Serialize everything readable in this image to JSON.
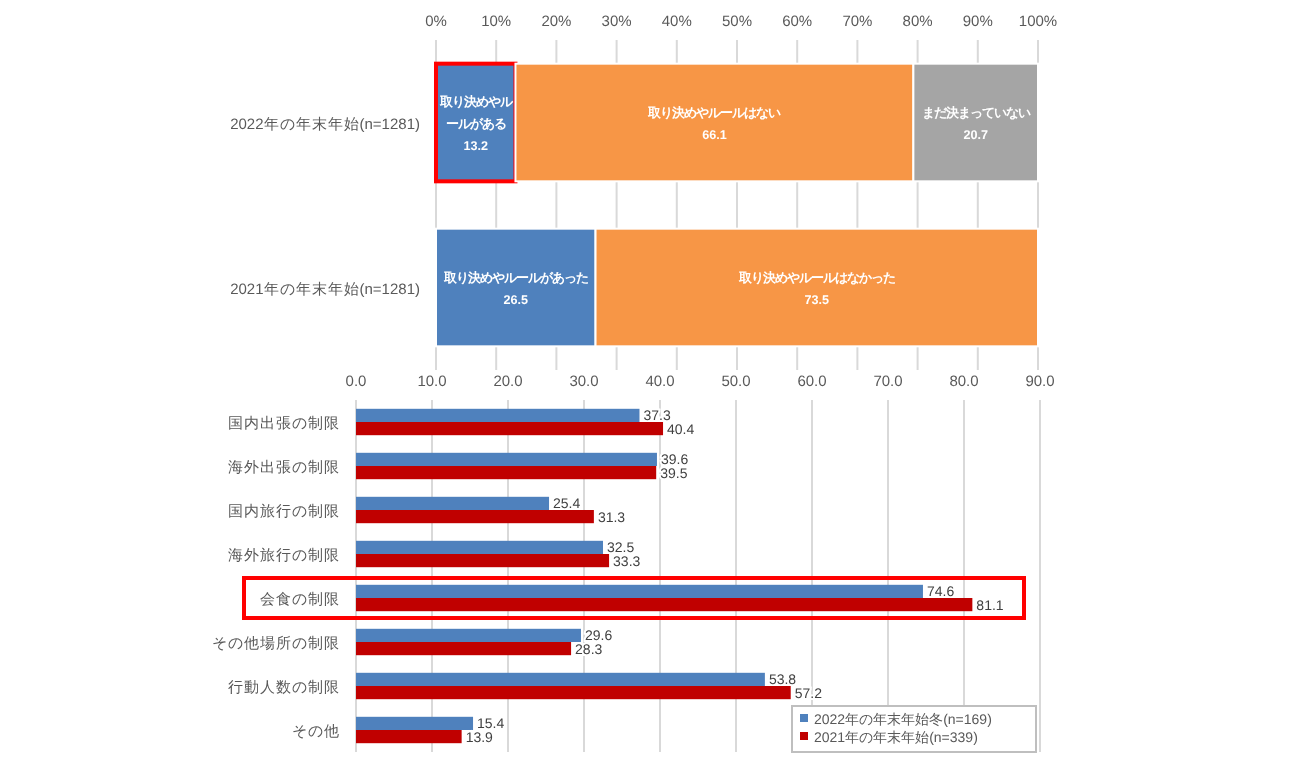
{
  "chart_data": [
    {
      "type": "bar",
      "orientation": "horizontal",
      "stacked": true,
      "categories": [
        "2022年の年末年始(n=1281)",
        "2021年の年末年始(n=1281)"
      ],
      "series": [
        {
          "color": "#4f81bd",
          "values": [
            13.2,
            26.5
          ],
          "value_labels": [
            "取り決めやルールがある\n13.2",
            "取り決めやルールがあった\n26.5"
          ]
        },
        {
          "color": "#f79646",
          "values": [
            66.1,
            73.5
          ],
          "value_labels": [
            "取り決めやルールはない\n66.1",
            "取り決めやルールはなかった\n73.5"
          ]
        },
        {
          "color": "#a5a5a5",
          "values": [
            20.7,
            null
          ],
          "value_labels": [
            "まだ決まっていない\n20.7",
            null
          ]
        }
      ],
      "xlim": [
        0,
        100
      ],
      "xticks": [
        {
          "value": 0,
          "label": "0%"
        },
        {
          "value": 10,
          "label": "10%"
        },
        {
          "value": 20,
          "label": "20%"
        },
        {
          "value": 30,
          "label": "30%"
        },
        {
          "value": 40,
          "label": "40%"
        },
        {
          "value": 50,
          "label": "50%"
        },
        {
          "value": 60,
          "label": "60%"
        },
        {
          "value": 70,
          "label": "70%"
        },
        {
          "value": 80,
          "label": "80%"
        },
        {
          "value": 90,
          "label": "90%"
        },
        {
          "value": 100,
          "label": "100%"
        }
      ],
      "grid": "x",
      "legend": false
    },
    {
      "type": "bar",
      "orientation": "horizontal",
      "categories": [
        "国内出張の制限",
        "海外出張の制限",
        "国内旅行の制限",
        "海外旅行の制限",
        "会食の制限",
        "その他場所の制限",
        "行動人数の制限",
        "その他"
      ],
      "series": [
        {
          "name": "2022年の年末年始冬(n=169)",
          "color": "#4f81bd",
          "values": [
            37.3,
            39.6,
            25.4,
            32.5,
            74.6,
            29.6,
            53.8,
            15.4
          ]
        },
        {
          "name": "2021年の年末年始(n=339)",
          "color": "#c00000",
          "values": [
            40.4,
            39.5,
            31.3,
            33.3,
            81.1,
            28.3,
            57.2,
            13.9
          ]
        }
      ],
      "xlim": [
        0,
        90
      ],
      "xticks": [
        {
          "value": 0,
          "label": "0.0"
        },
        {
          "value": 10,
          "label": "10.0"
        },
        {
          "value": 20,
          "label": "20.0"
        },
        {
          "value": 30,
          "label": "30.0"
        },
        {
          "value": 40,
          "label": "40.0"
        },
        {
          "value": 50,
          "label": "50.0"
        },
        {
          "value": 60,
          "label": "60.0"
        },
        {
          "value": 70,
          "label": "70.0"
        },
        {
          "value": 80,
          "label": "80.0"
        },
        {
          "value": 90,
          "label": "90.0"
        }
      ],
      "grid": "x",
      "data_labels": true,
      "legend": "bottom right"
    }
  ]
}
